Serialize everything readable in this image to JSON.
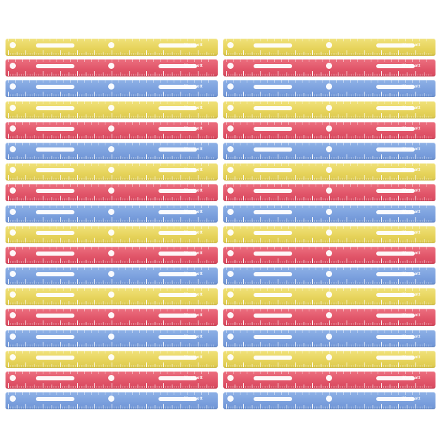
{
  "image": {
    "description_free": true,
    "brand_text": "Westcott",
    "colors": {
      "yellow": "#e6d35a",
      "red": "#e05468",
      "blue": "#7a9fdd",
      "background": "#ffffff"
    },
    "columns": [
      {
        "rulers": [
          "yellow",
          "red",
          "blue",
          "yellow",
          "red",
          "blue",
          "yellow",
          "red",
          "blue",
          "yellow",
          "red",
          "blue",
          "yellow",
          "red",
          "blue",
          "yellow",
          "red",
          "blue"
        ]
      },
      {
        "rulers": [
          "yellow",
          "red",
          "blue",
          "yellow",
          "red",
          "blue",
          "yellow",
          "red",
          "blue",
          "yellow",
          "red",
          "blue",
          "yellow",
          "red",
          "blue",
          "yellow",
          "red",
          "blue"
        ]
      }
    ]
  }
}
